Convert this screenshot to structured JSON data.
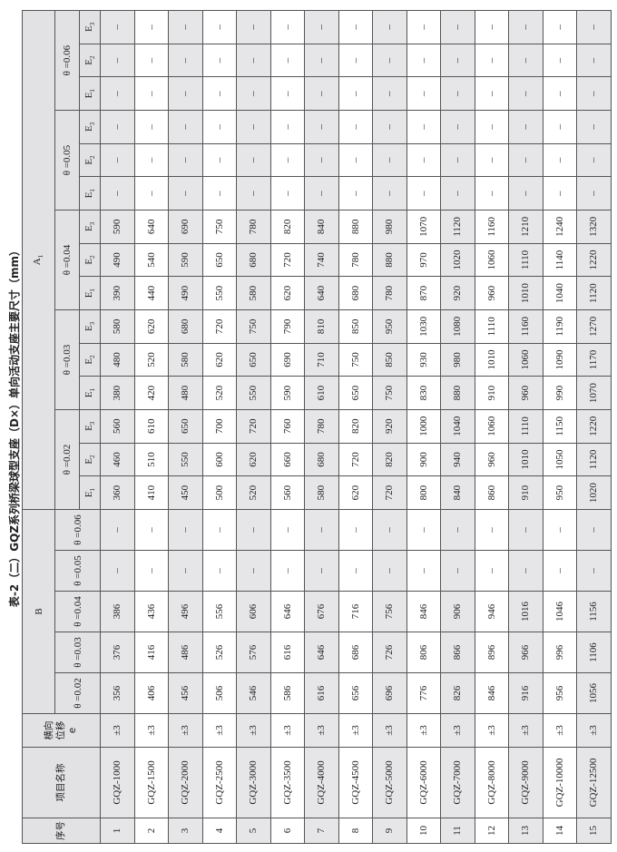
{
  "title": "表-2（二）GQZ系列桥梁球型支座（D×）单向活动支座主要尺寸（mm）",
  "header": {
    "seq": "序号",
    "name": "项目名称",
    "e_label": "横向位移",
    "e_sym": "e",
    "B": "B",
    "A_base": "A",
    "A_sub": "1",
    "thetas": [
      "θ =0.02",
      "θ =0.03",
      "θ =0.04",
      "θ =0.05",
      "θ =0.06"
    ],
    "E_base": "E",
    "E_subs": [
      "1",
      "2",
      "3"
    ]
  },
  "colors": {
    "header_bg": "#e2e2e4",
    "odd_row_bg": "#e6e6e8",
    "border": "#333333"
  },
  "rows": [
    {
      "no": "1",
      "name": "GQZ-1000",
      "e": "±3",
      "B": [
        "356",
        "376",
        "386",
        "–",
        "–"
      ],
      "A": [
        "360",
        "460",
        "560",
        "380",
        "480",
        "580",
        "390",
        "490",
        "590",
        "–",
        "–",
        "–",
        "–",
        "–",
        "–"
      ]
    },
    {
      "no": "2",
      "name": "GQZ-1500",
      "e": "±3",
      "B": [
        "406",
        "416",
        "436",
        "–",
        "–"
      ],
      "A": [
        "410",
        "510",
        "610",
        "420",
        "520",
        "620",
        "440",
        "540",
        "640",
        "–",
        "–",
        "–",
        "–",
        "–",
        "–"
      ]
    },
    {
      "no": "3",
      "name": "GQZ-2000",
      "e": "±3",
      "B": [
        "456",
        "486",
        "496",
        "–",
        "–"
      ],
      "A": [
        "450",
        "550",
        "650",
        "480",
        "580",
        "680",
        "490",
        "590",
        "690",
        "–",
        "–",
        "–",
        "–",
        "–",
        "–"
      ]
    },
    {
      "no": "4",
      "name": "GQZ-2500",
      "e": "±3",
      "B": [
        "506",
        "526",
        "556",
        "–",
        "–"
      ],
      "A": [
        "500",
        "600",
        "700",
        "520",
        "620",
        "720",
        "550",
        "650",
        "750",
        "–",
        "–",
        "–",
        "–",
        "–",
        "–"
      ]
    },
    {
      "no": "5",
      "name": "GQZ-3000",
      "e": "±3",
      "B": [
        "546",
        "576",
        "606",
        "–",
        "–"
      ],
      "A": [
        "520",
        "620",
        "720",
        "550",
        "650",
        "750",
        "580",
        "680",
        "780",
        "–",
        "–",
        "–",
        "–",
        "–",
        "–"
      ]
    },
    {
      "no": "6",
      "name": "GQZ-3500",
      "e": "±3",
      "B": [
        "586",
        "616",
        "646",
        "–",
        "–"
      ],
      "A": [
        "560",
        "660",
        "760",
        "590",
        "690",
        "790",
        "620",
        "720",
        "820",
        "–",
        "–",
        "–",
        "–",
        "–",
        "–"
      ]
    },
    {
      "no": "7",
      "name": "GQZ-4000",
      "e": "±3",
      "B": [
        "616",
        "646",
        "676",
        "–",
        "–"
      ],
      "A": [
        "580",
        "680",
        "780",
        "610",
        "710",
        "810",
        "640",
        "740",
        "840",
        "–",
        "–",
        "–",
        "–",
        "–",
        "–"
      ]
    },
    {
      "no": "8",
      "name": "GQZ-4500",
      "e": "±3",
      "B": [
        "656",
        "686",
        "716",
        "–",
        "–"
      ],
      "A": [
        "620",
        "720",
        "820",
        "650",
        "750",
        "850",
        "680",
        "780",
        "880",
        "–",
        "–",
        "–",
        "–",
        "–",
        "–"
      ]
    },
    {
      "no": "9",
      "name": "GQZ-5000",
      "e": "±3",
      "B": [
        "696",
        "726",
        "756",
        "–",
        "–"
      ],
      "A": [
        "720",
        "820",
        "920",
        "750",
        "850",
        "950",
        "780",
        "880",
        "980",
        "–",
        "–",
        "–",
        "–",
        "–",
        "–"
      ]
    },
    {
      "no": "10",
      "name": "GQZ-6000",
      "e": "±3",
      "B": [
        "776",
        "806",
        "846",
        "–",
        "–"
      ],
      "A": [
        "800",
        "900",
        "1000",
        "830",
        "930",
        "1030",
        "870",
        "970",
        "1070",
        "–",
        "–",
        "–",
        "–",
        "–",
        "–"
      ]
    },
    {
      "no": "11",
      "name": "GQZ-7000",
      "e": "±3",
      "B": [
        "826",
        "866",
        "906",
        "–",
        "–"
      ],
      "A": [
        "840",
        "940",
        "1040",
        "880",
        "980",
        "1080",
        "920",
        "1020",
        "1120",
        "–",
        "–",
        "–",
        "–",
        "–",
        "–"
      ]
    },
    {
      "no": "12",
      "name": "GQZ-8000",
      "e": "±3",
      "B": [
        "846",
        "896",
        "946",
        "–",
        "–"
      ],
      "A": [
        "860",
        "960",
        "1060",
        "910",
        "1010",
        "1110",
        "960",
        "1060",
        "1160",
        "–",
        "–",
        "–",
        "–",
        "–",
        "–"
      ]
    },
    {
      "no": "13",
      "name": "GQZ-9000",
      "e": "±3",
      "B": [
        "916",
        "966",
        "1016",
        "–",
        "–"
      ],
      "A": [
        "910",
        "1010",
        "1110",
        "960",
        "1060",
        "1160",
        "1010",
        "1110",
        "1210",
        "–",
        "–",
        "–",
        "–",
        "–",
        "–"
      ]
    },
    {
      "no": "14",
      "name": "GQZ-10000",
      "e": "±3",
      "B": [
        "956",
        "996",
        "1046",
        "–",
        "–"
      ],
      "A": [
        "950",
        "1050",
        "1150",
        "990",
        "1090",
        "1190",
        "1040",
        "1140",
        "1240",
        "–",
        "–",
        "–",
        "–",
        "–",
        "–"
      ]
    },
    {
      "no": "15",
      "name": "GQZ-12500",
      "e": "±3",
      "B": [
        "1056",
        "1106",
        "1156",
        "–",
        "–"
      ],
      "A": [
        "1020",
        "1120",
        "1220",
        "1070",
        "1170",
        "1270",
        "1120",
        "1220",
        "1320",
        "–",
        "–",
        "–",
        "–",
        "–",
        "–"
      ]
    }
  ]
}
